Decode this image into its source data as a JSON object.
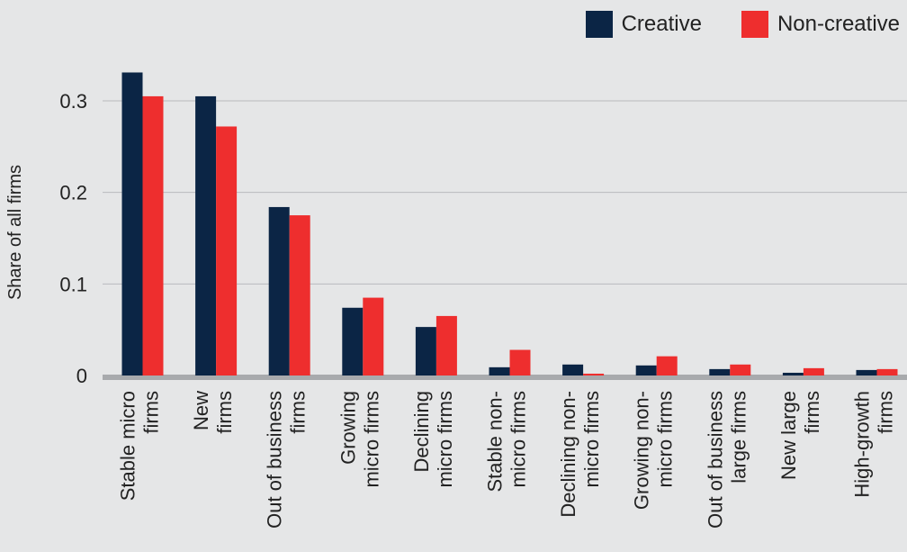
{
  "chart_data": {
    "type": "bar",
    "title": "",
    "xlabel": "",
    "ylabel": "Share of all firms",
    "ylim": [
      0,
      0.3
    ],
    "yticks": [
      {
        "value": 0,
        "label": "0"
      },
      {
        "value": 0.1,
        "label": "0.1"
      },
      {
        "value": 0.2,
        "label": "0.2"
      },
      {
        "value": 0.3,
        "label": "0.3"
      }
    ],
    "grid": true,
    "legend_position": "top-right",
    "categories": [
      [
        "Stable micro",
        "firms"
      ],
      [
        "New",
        "firms"
      ],
      [
        "Out of business",
        "firms"
      ],
      [
        "Growing",
        "micro firms"
      ],
      [
        "Declining",
        "micro firms"
      ],
      [
        "Stable non-",
        "micro firms"
      ],
      [
        "Declining non-",
        "micro firms"
      ],
      [
        "Growing non-",
        "micro firms"
      ],
      [
        "Out of business",
        "large firms"
      ],
      [
        "New large",
        "firms"
      ],
      [
        "High-growth",
        "firms"
      ]
    ],
    "series": [
      {
        "name": "Creative",
        "color": "#0b2545",
        "values": [
          0.331,
          0.305,
          0.184,
          0.074,
          0.053,
          0.009,
          0.012,
          0.011,
          0.007,
          0.003,
          0.006
        ]
      },
      {
        "name": "Non-creative",
        "color": "#ee2e2e",
        "values": [
          0.305,
          0.272,
          0.175,
          0.085,
          0.065,
          0.028,
          0.002,
          0.021,
          0.012,
          0.008,
          0.007
        ]
      }
    ]
  }
}
